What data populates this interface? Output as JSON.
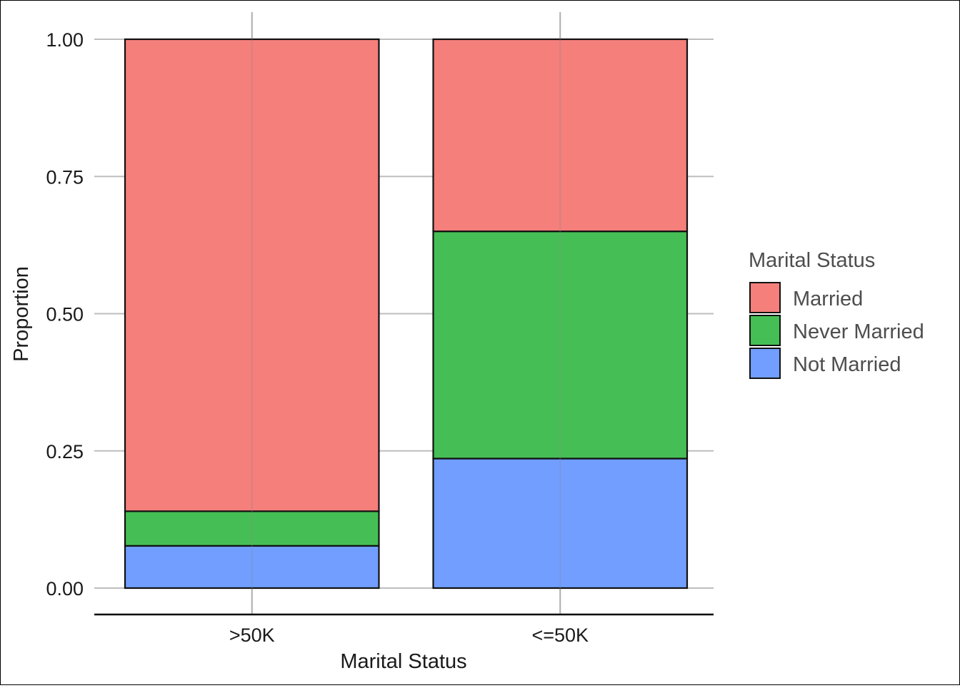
{
  "chart_data": {
    "type": "bar",
    "stacked": true,
    "categories": [
      ">50K",
      "<=50K"
    ],
    "series": [
      {
        "name": "Married",
        "values": [
          0.86,
          0.35
        ],
        "color": "#F47F7B"
      },
      {
        "name": "Never Married",
        "values": [
          0.063,
          0.414
        ],
        "color": "#45BF55"
      },
      {
        "name": "Not Married",
        "values": [
          0.077,
          0.236
        ],
        "color": "#719EFF"
      }
    ],
    "stack_order_bottom_to_top": [
      "Not Married",
      "Never Married",
      "Married"
    ],
    "xlabel": "Marital Status",
    "ylabel": "Proportion",
    "ylim": [
      0,
      1
    ],
    "yticks": [
      "0.00",
      "0.25",
      "0.50",
      "0.75",
      "1.00"
    ],
    "grid": true,
    "legend": {
      "title": "Marital Status",
      "position": "right",
      "entries": [
        "Married",
        "Never Married",
        "Not Married"
      ]
    },
    "colors": {
      "grid": "#BEBEBE",
      "bar_outline": "#111111",
      "axis_line": "#000000"
    }
  }
}
